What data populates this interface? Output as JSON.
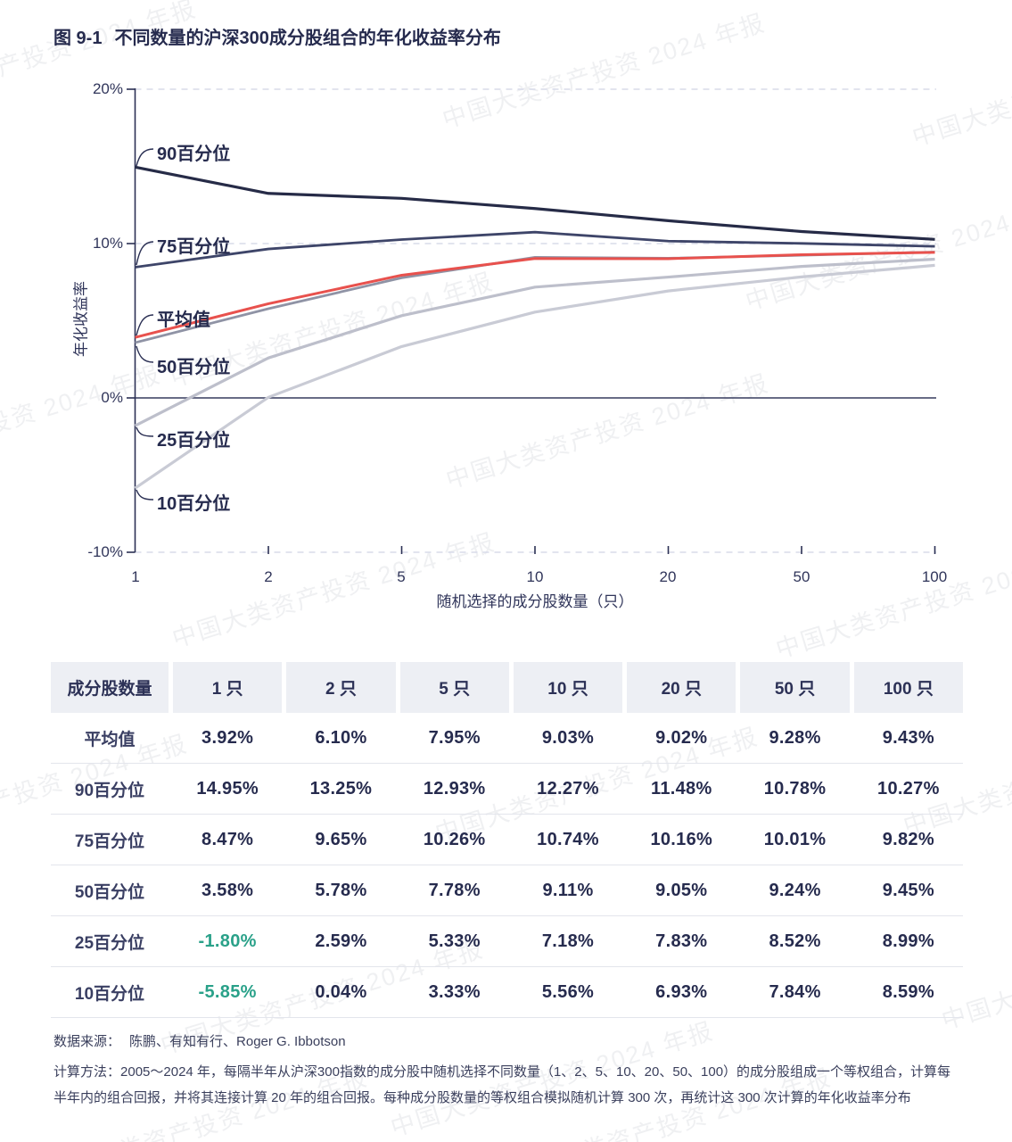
{
  "title": {
    "prefix": "图 9-1",
    "text": "不同数量的沪深300成分股组合的年化收益率分布"
  },
  "watermark": {
    "text": "中国大类资产投资 2024 年报"
  },
  "colors": {
    "navy_text": "#262b4e",
    "accent_red": "#e8514d",
    "green_negative": "#2aa189",
    "grid_dashed": "#d8dbe9",
    "header_bg": "#edeff4"
  },
  "chart_data": {
    "type": "line",
    "title": "不同数量的沪深300成分股组合的年化收益率分布",
    "xlabel": "随机选择的成分股数量（只）",
    "ylabel": "年化收益率",
    "x_categories": [
      "1",
      "2",
      "5",
      "10",
      "20",
      "50",
      "100"
    ],
    "y_ticks": [
      "20%",
      "10%",
      "0%",
      "-10%"
    ],
    "ylim": [
      -10,
      20
    ],
    "x_scale": "log-like, seven equally spaced ticks",
    "grid": "dashed horizontal lines at 20%, 10%, -10%; solid line at 0%",
    "legend_position": "inline labels at left edge of each line",
    "series": [
      {
        "key": "mean",
        "name": "平均值",
        "color": "#e8514d",
        "width": 3,
        "values": [
          3.92,
          6.1,
          7.95,
          9.03,
          9.02,
          9.28,
          9.43
        ]
      },
      {
        "key": "p90",
        "name": "90百分位",
        "color": "#262b47",
        "width": 3.2,
        "values": [
          14.95,
          13.25,
          12.93,
          12.27,
          11.48,
          10.78,
          10.27
        ]
      },
      {
        "key": "p75",
        "name": "75百分位",
        "color": "#3e4569",
        "width": 2.8,
        "values": [
          8.47,
          9.65,
          10.26,
          10.74,
          10.16,
          10.01,
          9.82
        ]
      },
      {
        "key": "p50",
        "name": "50百分位",
        "color": "#8f93a5",
        "width": 2.8,
        "values": [
          3.58,
          5.78,
          7.78,
          9.11,
          9.05,
          9.24,
          9.45
        ]
      },
      {
        "key": "p25",
        "name": "25百分位",
        "color": "#bdbfcb",
        "width": 3.2,
        "values": [
          -1.8,
          2.59,
          5.33,
          7.18,
          7.83,
          8.52,
          8.99
        ]
      },
      {
        "key": "p10",
        "name": "10百分位",
        "color": "#c9cbd5",
        "width": 3.2,
        "values": [
          -5.85,
          0.04,
          3.33,
          5.56,
          6.93,
          7.84,
          8.59
        ]
      }
    ],
    "draw_order": [
      "p10",
      "p25",
      "p50",
      "mean",
      "p75",
      "p90"
    ]
  },
  "table": {
    "header": [
      "成分股数量",
      "1 只",
      "2 只",
      "5 只",
      "10 只",
      "20 只",
      "50 只",
      "100 只"
    ],
    "rows": [
      {
        "label": "平均值",
        "cells": [
          "3.92%",
          "6.10%",
          "7.95%",
          "9.03%",
          "9.02%",
          "9.28%",
          "9.43%"
        ]
      },
      {
        "label": "90百分位",
        "cells": [
          "14.95%",
          "13.25%",
          "12.93%",
          "12.27%",
          "11.48%",
          "10.78%",
          "10.27%"
        ]
      },
      {
        "label": "75百分位",
        "cells": [
          "8.47%",
          "9.65%",
          "10.26%",
          "10.74%",
          "10.16%",
          "10.01%",
          "9.82%"
        ]
      },
      {
        "label": "50百分位",
        "cells": [
          "3.58%",
          "5.78%",
          "7.78%",
          "9.11%",
          "9.05%",
          "9.24%",
          "9.45%"
        ]
      },
      {
        "label": "25百分位",
        "cells": [
          "-1.80%",
          "2.59%",
          "5.33%",
          "7.18%",
          "7.83%",
          "8.52%",
          "8.99%"
        ]
      },
      {
        "label": "10百分位",
        "cells": [
          "-5.85%",
          "0.04%",
          "3.33%",
          "5.56%",
          "6.93%",
          "7.84%",
          "8.59%"
        ]
      }
    ]
  },
  "footer": {
    "source_label": "数据来源：",
    "source": "陈鹏、有知有行、Roger G. Ibbotson",
    "method_label": "计算方法：",
    "method": "2005～2024 年，每隔半年从沪深300指数的成分股中随机选择不同数量（1、2、5、10、20、50、100）的成分股组成一个等权组合，计算每半年内的组合回报，并将其连接计算 20 年的组合回报。每种成分股数量的等权组合模拟随机计算 300 次，再统计这 300 次计算的年化收益率分布"
  }
}
